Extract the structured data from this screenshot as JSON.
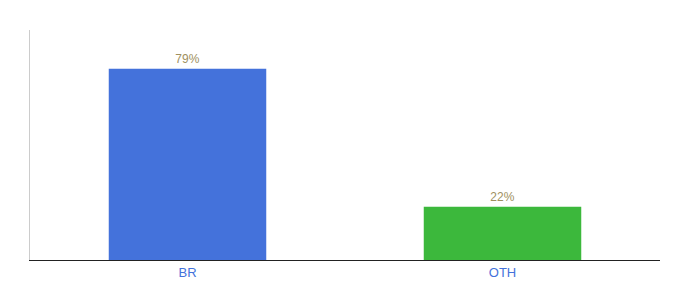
{
  "chart_data": {
    "type": "bar",
    "categories": [
      "BR",
      "OTH"
    ],
    "values": [
      79,
      22
    ],
    "value_labels": [
      "79%",
      "22%"
    ],
    "colors": [
      "#4472db",
      "#3cb83c"
    ],
    "ylim": [
      0,
      95
    ],
    "grid": false,
    "data_labels": true,
    "tick_labels": "x"
  }
}
